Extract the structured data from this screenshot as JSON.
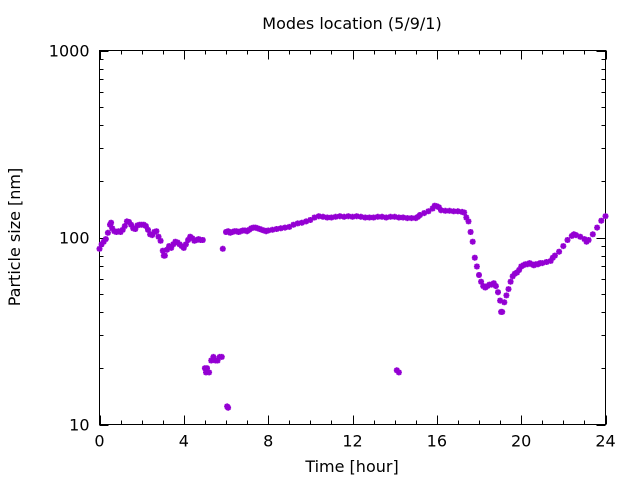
{
  "chart_data": {
    "type": "scatter",
    "title": "Modes location (5/9/1)",
    "xlabel": "Time [hour]",
    "ylabel": "Particle size [nm]",
    "xlim": [
      0,
      24
    ],
    "ylim": [
      10,
      1000
    ],
    "y_scale": "log",
    "x_ticks": [
      "0",
      "4",
      "8",
      "12",
      "16",
      "20",
      "24"
    ],
    "y_ticks": [
      "10",
      "100",
      "1000"
    ],
    "grid": false,
    "legend": "none",
    "marker_color": "#9400D3",
    "marker": "asterisk",
    "series": [
      {
        "points": [
          [
            0.0,
            87
          ],
          [
            0.1,
            92
          ],
          [
            0.2,
            95
          ],
          [
            0.3,
            98
          ],
          [
            0.4,
            106
          ],
          [
            0.5,
            117
          ],
          [
            0.55,
            120
          ],
          [
            0.6,
            112
          ],
          [
            0.7,
            108
          ],
          [
            0.8,
            107
          ],
          [
            0.9,
            108
          ],
          [
            1.0,
            107
          ],
          [
            1.1,
            110
          ],
          [
            1.2,
            115
          ],
          [
            1.3,
            122
          ],
          [
            1.4,
            121
          ],
          [
            1.5,
            117
          ],
          [
            1.6,
            112
          ],
          [
            1.7,
            111
          ],
          [
            1.8,
            116
          ],
          [
            1.9,
            117
          ],
          [
            2.0,
            117
          ],
          [
            2.1,
            117
          ],
          [
            2.2,
            115
          ],
          [
            2.3,
            110
          ],
          [
            2.4,
            104
          ],
          [
            2.5,
            103
          ],
          [
            2.6,
            107
          ],
          [
            2.7,
            108
          ],
          [
            2.8,
            101
          ],
          [
            2.9,
            96
          ],
          [
            3.0,
            85
          ],
          [
            3.05,
            80
          ],
          [
            3.1,
            80
          ],
          [
            3.2,
            86
          ],
          [
            3.3,
            90
          ],
          [
            3.4,
            88
          ],
          [
            3.5,
            92
          ],
          [
            3.6,
            95
          ],
          [
            3.7,
            94
          ],
          [
            3.8,
            92
          ],
          [
            3.9,
            90
          ],
          [
            4.0,
            88
          ],
          [
            4.1,
            92
          ],
          [
            4.2,
            97
          ],
          [
            4.3,
            101
          ],
          [
            4.4,
            99
          ],
          [
            4.5,
            96
          ],
          [
            4.6,
            97
          ],
          [
            4.7,
            98
          ],
          [
            4.8,
            97
          ],
          [
            4.9,
            97
          ],
          [
            5.0,
            20
          ],
          [
            5.05,
            19
          ],
          [
            5.1,
            20
          ],
          [
            5.2,
            19
          ],
          [
            5.3,
            22
          ],
          [
            5.4,
            23
          ],
          [
            5.5,
            22
          ],
          [
            5.6,
            22
          ],
          [
            5.7,
            23
          ],
          [
            5.8,
            23
          ],
          [
            5.85,
            87
          ],
          [
            6.0,
            107
          ],
          [
            6.1,
            108
          ],
          [
            6.2,
            106
          ],
          [
            6.3,
            107
          ],
          [
            6.4,
            108
          ],
          [
            6.5,
            108
          ],
          [
            6.6,
            107
          ],
          [
            6.7,
            108
          ],
          [
            6.8,
            109
          ],
          [
            6.9,
            109
          ],
          [
            7.0,
            108
          ],
          [
            7.1,
            110
          ],
          [
            7.2,
            112
          ],
          [
            7.3,
            113
          ],
          [
            7.4,
            113
          ],
          [
            7.5,
            112
          ],
          [
            7.6,
            111
          ],
          [
            7.7,
            110
          ],
          [
            7.8,
            109
          ],
          [
            7.9,
            108
          ],
          [
            8.0,
            109
          ],
          [
            8.2,
            110
          ],
          [
            8.4,
            111
          ],
          [
            8.6,
            112
          ],
          [
            8.8,
            113
          ],
          [
            9.0,
            114
          ],
          [
            9.2,
            117
          ],
          [
            9.4,
            119
          ],
          [
            9.6,
            120
          ],
          [
            9.8,
            122
          ],
          [
            10.0,
            124
          ],
          [
            10.2,
            128
          ],
          [
            10.4,
            130
          ],
          [
            10.6,
            129
          ],
          [
            10.8,
            128
          ],
          [
            11.0,
            128
          ],
          [
            11.2,
            129
          ],
          [
            11.4,
            130
          ],
          [
            11.6,
            129
          ],
          [
            11.8,
            130
          ],
          [
            12.0,
            129
          ],
          [
            12.2,
            130
          ],
          [
            12.4,
            129
          ],
          [
            12.6,
            128
          ],
          [
            12.8,
            128
          ],
          [
            13.0,
            128
          ],
          [
            13.2,
            129
          ],
          [
            13.4,
            129
          ],
          [
            13.6,
            128
          ],
          [
            13.8,
            129
          ],
          [
            14.0,
            129
          ],
          [
            14.2,
            128
          ],
          [
            14.4,
            128
          ],
          [
            14.6,
            127
          ],
          [
            14.8,
            127
          ],
          [
            15.0,
            127
          ],
          [
            15.1,
            129
          ],
          [
            15.2,
            132
          ],
          [
            15.4,
            135
          ],
          [
            15.6,
            138
          ],
          [
            15.8,
            143
          ],
          [
            15.9,
            148
          ],
          [
            16.0,
            147
          ],
          [
            16.1,
            145
          ],
          [
            16.2,
            140
          ],
          [
            16.4,
            139
          ],
          [
            16.6,
            139
          ],
          [
            16.8,
            138
          ],
          [
            17.0,
            138
          ],
          [
            17.2,
            137
          ],
          [
            17.3,
            136
          ],
          [
            17.4,
            128
          ],
          [
            17.5,
            122
          ],
          [
            17.6,
            107
          ],
          [
            17.7,
            95
          ],
          [
            17.8,
            78
          ],
          [
            17.9,
            70
          ],
          [
            18.0,
            63
          ],
          [
            18.1,
            58
          ],
          [
            18.2,
            55
          ],
          [
            18.3,
            54
          ],
          [
            18.4,
            55
          ],
          [
            18.5,
            56
          ],
          [
            18.6,
            56
          ],
          [
            18.7,
            57
          ],
          [
            18.8,
            55
          ],
          [
            18.9,
            51
          ],
          [
            19.0,
            46
          ],
          [
            19.05,
            40
          ],
          [
            19.1,
            40
          ],
          [
            19.2,
            45
          ],
          [
            19.3,
            49
          ],
          [
            19.4,
            53
          ],
          [
            19.5,
            58
          ],
          [
            19.6,
            62
          ],
          [
            19.7,
            64
          ],
          [
            19.8,
            65
          ],
          [
            19.9,
            67
          ],
          [
            20.0,
            70
          ],
          [
            20.1,
            71
          ],
          [
            20.2,
            72
          ],
          [
            20.3,
            72
          ],
          [
            20.4,
            73
          ],
          [
            20.5,
            72
          ],
          [
            20.6,
            71
          ],
          [
            20.7,
            72
          ],
          [
            20.8,
            72
          ],
          [
            20.9,
            73
          ],
          [
            21.0,
            73
          ],
          [
            21.2,
            74
          ],
          [
            21.4,
            75
          ],
          [
            21.5,
            78
          ],
          [
            21.6,
            80
          ],
          [
            21.8,
            84
          ],
          [
            22.0,
            90
          ],
          [
            22.2,
            97
          ],
          [
            22.4,
            102
          ],
          [
            22.5,
            104
          ],
          [
            22.6,
            103
          ],
          [
            22.8,
            101
          ],
          [
            23.0,
            98
          ],
          [
            23.1,
            95
          ],
          [
            23.2,
            97
          ],
          [
            23.4,
            104
          ],
          [
            23.6,
            113
          ],
          [
            23.8,
            123
          ],
          [
            24.0,
            130
          ]
        ]
      }
    ],
    "outliers": [
      [
        6.05,
        12.5
      ],
      [
        6.1,
        12.3
      ],
      [
        14.1,
        19.5
      ],
      [
        14.2,
        19.0
      ]
    ]
  }
}
